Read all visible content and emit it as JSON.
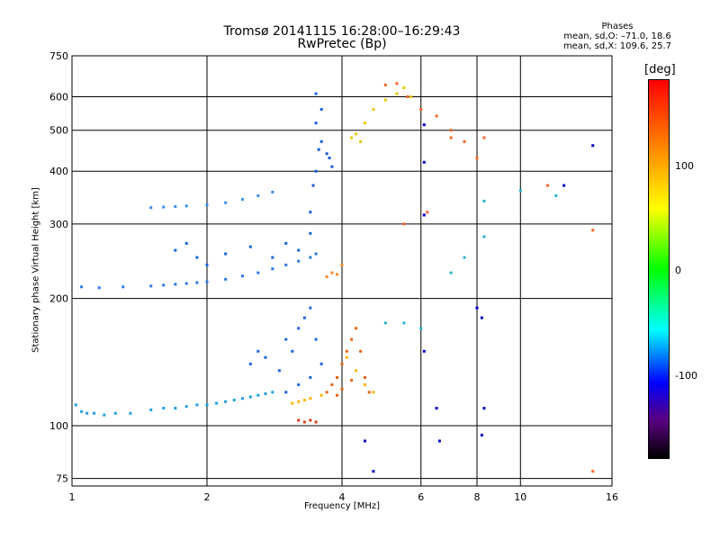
{
  "header": {
    "title_line1": "Tromsø 20141115 16:28:00–16:29:43",
    "title_line2": "RwPretec (Bp)",
    "phase_heading": "Phases",
    "phase_line1": "mean, sd,O: –71.0, 18.6",
    "phase_line2": "mean, sd,X: 109.6, 25.7"
  },
  "colorbar": {
    "title": "[deg]",
    "ticks": [
      "100",
      "0",
      "-100"
    ]
  },
  "chart_data": {
    "type": "scatter",
    "title": "Tromsø 20141115 16:28:00–16:29:43",
    "subtitle": "RwPretec (Bp)",
    "xlabel": "Frequency [MHz]",
    "ylabel": "Stationary phase Virtual Height [km]",
    "x_scale": "log",
    "y_scale": "log",
    "xlim": [
      1,
      16
    ],
    "ylim": [
      72,
      750
    ],
    "x_ticks": [
      1,
      2,
      4,
      6,
      8,
      10,
      16
    ],
    "x_tick_labels": [
      "1",
      "2",
      "4",
      "6",
      "8",
      "10",
      "16"
    ],
    "y_ticks": [
      75,
      100,
      200,
      300,
      400,
      500,
      600,
      750
    ],
    "y_tick_labels": [
      "75",
      "100",
      "200",
      "300",
      "400",
      "500",
      "600",
      "750"
    ],
    "grid": true,
    "color_scale": "phase, -180 to 180 deg",
    "series": [
      {
        "color": "#1ea0e6",
        "values": [
          [
            1.02,
            112
          ],
          [
            1.05,
            108
          ],
          [
            1.08,
            107
          ],
          [
            1.12,
            107
          ],
          [
            1.18,
            106
          ],
          [
            1.25,
            107
          ],
          [
            1.35,
            107
          ],
          [
            1.5,
            109
          ],
          [
            1.6,
            110
          ],
          [
            1.7,
            110
          ],
          [
            1.8,
            111
          ],
          [
            1.9,
            112
          ],
          [
            2.0,
            112
          ],
          [
            2.1,
            113
          ],
          [
            2.2,
            114
          ],
          [
            2.3,
            115
          ],
          [
            2.4,
            116
          ],
          [
            2.5,
            117
          ],
          [
            2.6,
            118
          ],
          [
            2.7,
            119
          ],
          [
            2.8,
            120
          ]
        ]
      },
      {
        "color": "#1e64e6",
        "values": [
          [
            2.5,
            140
          ],
          [
            2.6,
            150
          ],
          [
            2.7,
            145
          ],
          [
            2.9,
            135
          ],
          [
            3.0,
            160
          ],
          [
            3.1,
            150
          ],
          [
            3.2,
            170
          ],
          [
            3.3,
            180
          ],
          [
            3.4,
            190
          ],
          [
            3.5,
            160
          ],
          [
            3.6,
            140
          ],
          [
            3.2,
            125
          ],
          [
            3.0,
            120
          ],
          [
            3.4,
            130
          ]
        ]
      },
      {
        "color": "#2878e6",
        "values": [
          [
            1.05,
            213
          ],
          [
            1.15,
            212
          ],
          [
            1.3,
            213
          ],
          [
            1.5,
            214
          ],
          [
            1.6,
            215
          ],
          [
            1.7,
            216
          ],
          [
            1.8,
            217
          ],
          [
            1.9,
            218
          ],
          [
            2.0,
            219
          ],
          [
            2.2,
            222
          ],
          [
            2.4,
            226
          ],
          [
            2.6,
            230
          ],
          [
            2.8,
            235
          ],
          [
            3.0,
            240
          ],
          [
            3.2,
            245
          ],
          [
            3.4,
            250
          ],
          [
            3.5,
            255
          ]
        ]
      },
      {
        "color": "#1464dc",
        "values": [
          [
            1.7,
            260
          ],
          [
            1.8,
            270
          ],
          [
            1.9,
            250
          ],
          [
            2.0,
            240
          ],
          [
            2.2,
            255
          ],
          [
            2.5,
            265
          ],
          [
            2.8,
            250
          ],
          [
            3.0,
            270
          ],
          [
            3.2,
            260
          ],
          [
            3.4,
            285
          ]
        ]
      },
      {
        "color": "#3c8cf0",
        "values": [
          [
            1.5,
            328
          ],
          [
            1.6,
            329
          ],
          [
            1.7,
            330
          ],
          [
            1.8,
            331
          ],
          [
            2.0,
            333
          ],
          [
            2.2,
            337
          ],
          [
            2.4,
            343
          ],
          [
            2.6,
            350
          ],
          [
            2.8,
            357
          ]
        ]
      },
      {
        "color": "#1e5ae6",
        "values": [
          [
            3.4,
            320
          ],
          [
            3.45,
            370
          ],
          [
            3.5,
            400
          ],
          [
            3.55,
            450
          ],
          [
            3.6,
            470
          ],
          [
            3.7,
            440
          ],
          [
            3.75,
            430
          ],
          [
            3.8,
            410
          ],
          [
            3.5,
            520
          ],
          [
            3.6,
            560
          ],
          [
            3.5,
            610
          ]
        ]
      },
      {
        "color": "#e66414",
        "values": [
          [
            3.7,
            120
          ],
          [
            3.8,
            125
          ],
          [
            3.9,
            130
          ],
          [
            4.0,
            140
          ],
          [
            4.1,
            150
          ],
          [
            4.2,
            160
          ],
          [
            4.3,
            170
          ],
          [
            4.4,
            150
          ],
          [
            4.5,
            130
          ],
          [
            4.6,
            120
          ],
          [
            3.9,
            118
          ],
          [
            4.0,
            122
          ],
          [
            4.2,
            128
          ]
        ]
      },
      {
        "color": "#ffb400",
        "values": [
          [
            3.1,
            113
          ],
          [
            3.2,
            114
          ],
          [
            3.3,
            115
          ],
          [
            3.4,
            116
          ],
          [
            3.6,
            118
          ],
          [
            4.1,
            145
          ],
          [
            4.3,
            135
          ],
          [
            4.5,
            125
          ],
          [
            4.7,
            120
          ]
        ]
      },
      {
        "color": "#dc3c14",
        "values": [
          [
            3.2,
            103
          ],
          [
            3.3,
            102
          ],
          [
            3.4,
            103
          ],
          [
            3.5,
            102
          ]
        ]
      },
      {
        "color": "#ff8c28",
        "values": [
          [
            3.7,
            225
          ],
          [
            3.8,
            230
          ],
          [
            3.9,
            228
          ],
          [
            4.0,
            240
          ]
        ]
      },
      {
        "color": "#e6c800",
        "values": [
          [
            4.2,
            480
          ],
          [
            4.3,
            490
          ],
          [
            4.4,
            470
          ],
          [
            4.5,
            520
          ],
          [
            4.7,
            560
          ],
          [
            5.0,
            590
          ],
          [
            5.3,
            610
          ],
          [
            5.5,
            630
          ],
          [
            5.7,
            600
          ]
        ]
      },
      {
        "color": "#ff6428",
        "values": [
          [
            5.0,
            640
          ],
          [
            5.3,
            645
          ],
          [
            5.6,
            600
          ],
          [
            6.0,
            560
          ],
          [
            6.5,
            540
          ],
          [
            7.0,
            480
          ],
          [
            7.5,
            470
          ],
          [
            8.0,
            430
          ],
          [
            6.2,
            320
          ],
          [
            5.5,
            300
          ],
          [
            7.0,
            500
          ],
          [
            8.3,
            480
          ],
          [
            11.5,
            370
          ],
          [
            14.5,
            290
          ],
          [
            14.5,
            78
          ]
        ]
      },
      {
        "color": "#0000c8",
        "values": [
          [
            6.1,
            515
          ],
          [
            6.1,
            420
          ],
          [
            6.1,
            315
          ],
          [
            6.1,
            150
          ],
          [
            6.5,
            110
          ],
          [
            6.6,
            92
          ],
          [
            8.0,
            190
          ],
          [
            8.2,
            180
          ],
          [
            8.3,
            110
          ],
          [
            8.2,
            95
          ],
          [
            4.5,
            92
          ],
          [
            4.7,
            78
          ],
          [
            12.5,
            370
          ],
          [
            14.5,
            460
          ]
        ]
      },
      {
        "color": "#28b4c8",
        "values": [
          [
            5.0,
            175
          ],
          [
            5.5,
            175
          ],
          [
            6.0,
            170
          ],
          [
            7.0,
            230
          ],
          [
            7.5,
            250
          ],
          [
            8.3,
            280
          ],
          [
            8.3,
            340
          ],
          [
            10.0,
            360
          ],
          [
            12.0,
            350
          ]
        ]
      }
    ]
  }
}
